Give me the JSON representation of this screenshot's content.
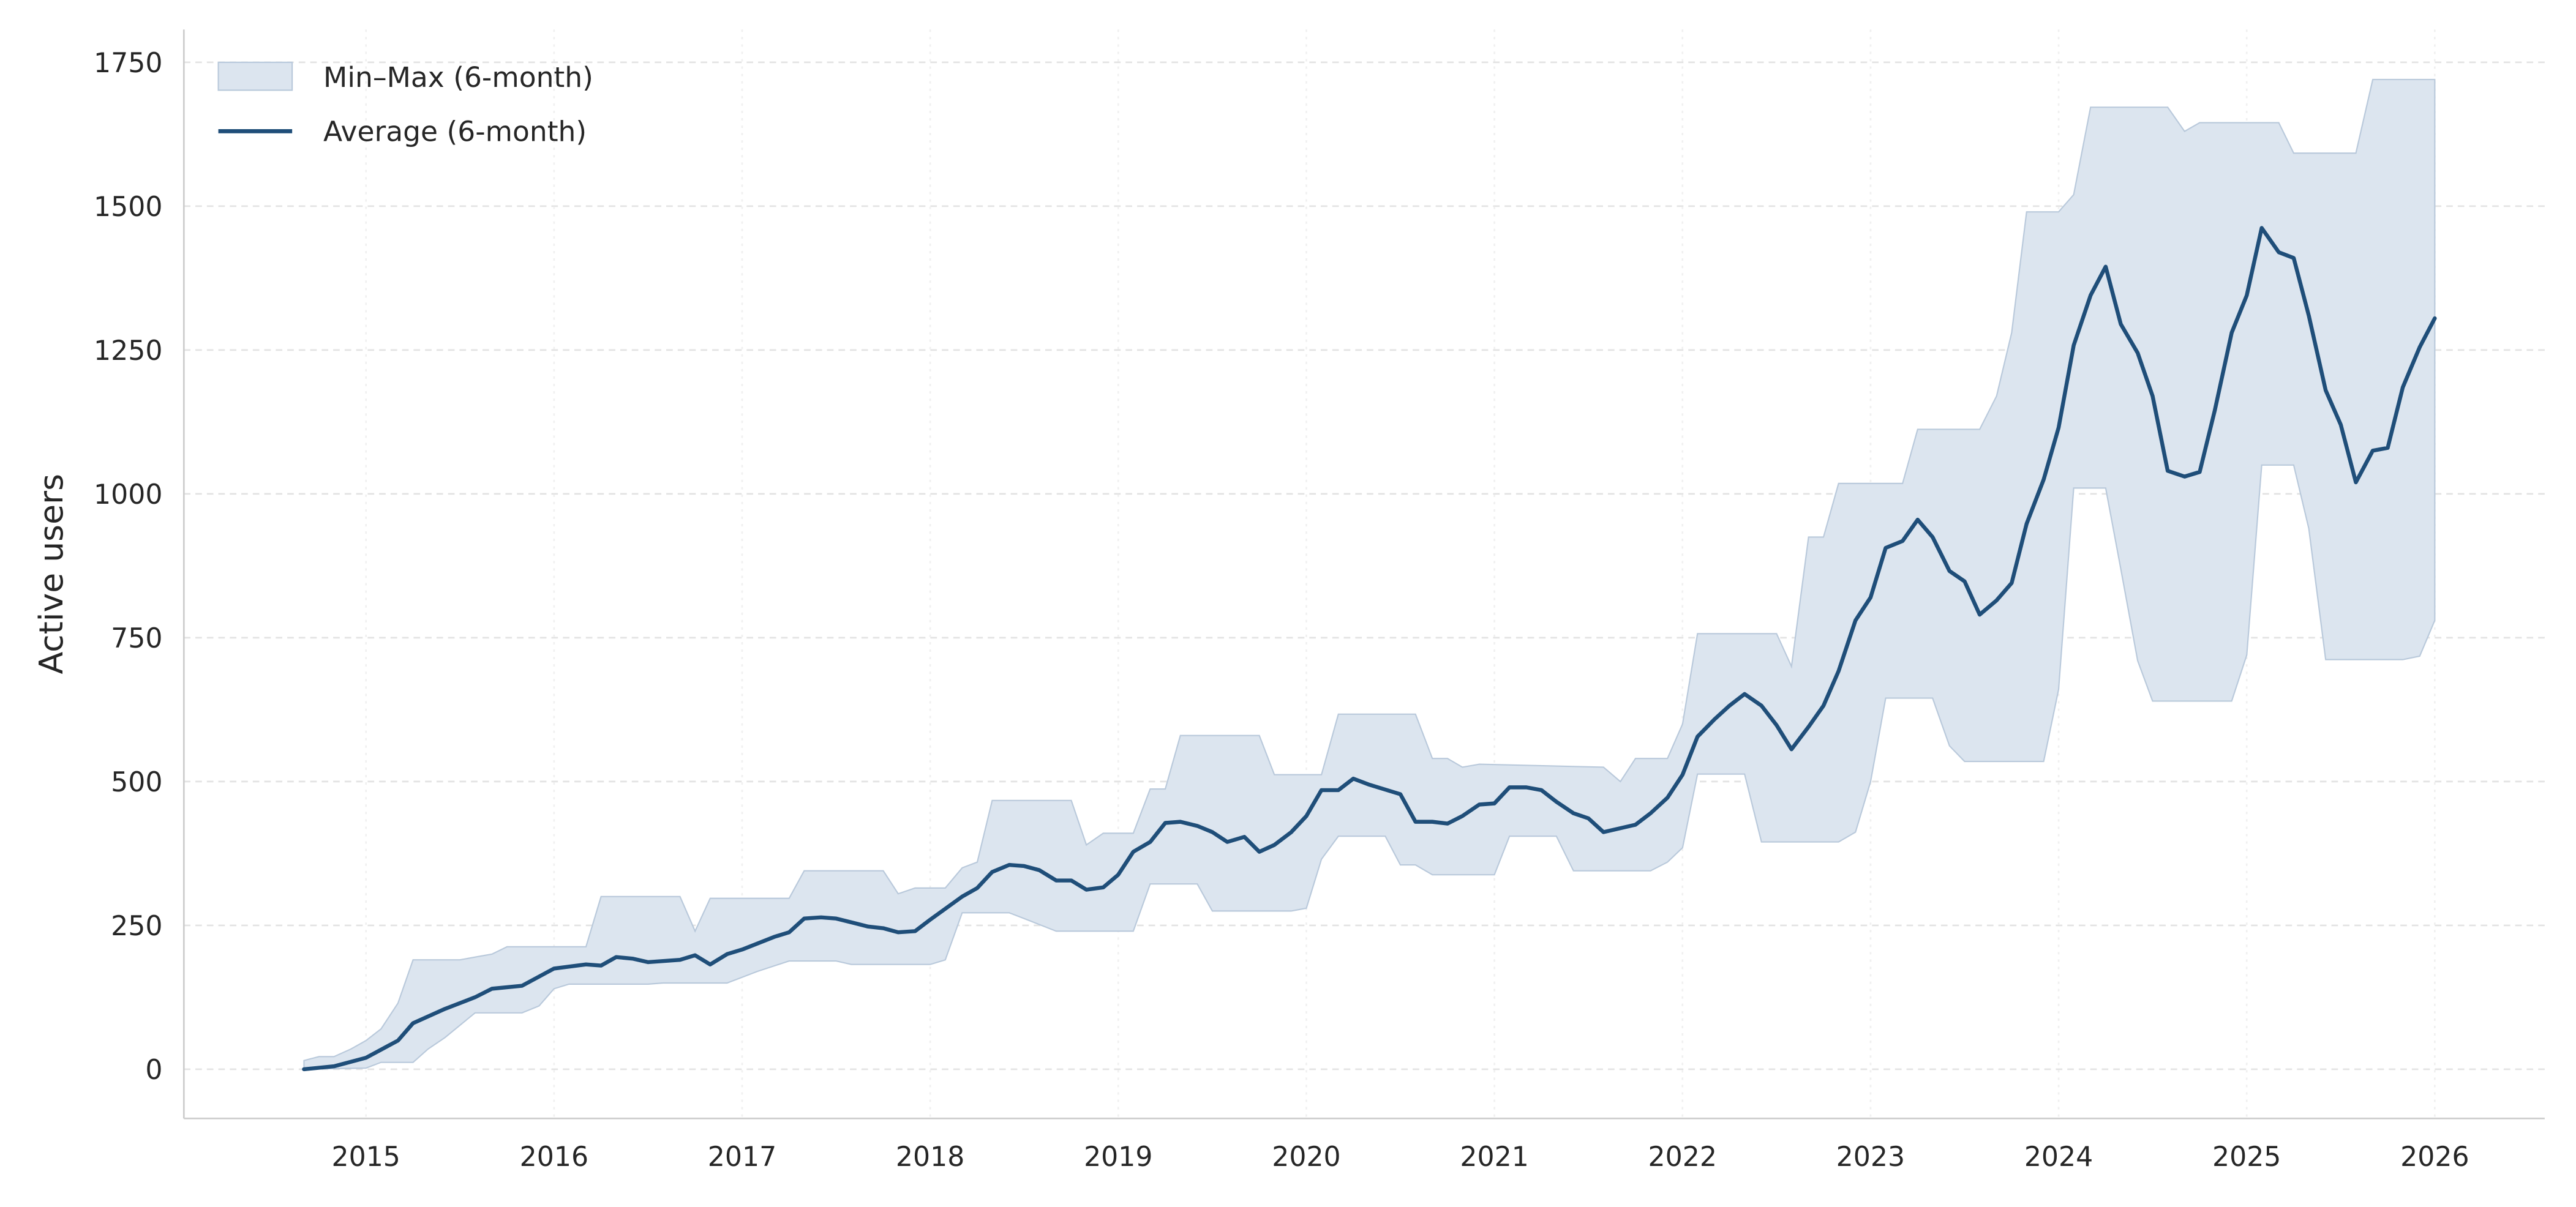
{
  "chart_data": {
    "type": "line",
    "title": "",
    "xlabel": "",
    "ylabel": "Active users",
    "xlim": [
      2014.1,
      2026.55
    ],
    "ylim": [
      -75,
      1810
    ],
    "yticks": [
      0,
      250,
      500,
      750,
      1000,
      1250,
      1500,
      1750
    ],
    "xticks": [
      2015,
      2016,
      2017,
      2018,
      2019,
      2020,
      2021,
      2022,
      2023,
      2024,
      2025,
      2026
    ],
    "grid": true,
    "legend_position": "top-left",
    "colors": {
      "line": "#1f4e79",
      "band": "#dce5ef",
      "band_edge": "#b9c9db"
    },
    "legend": [
      {
        "label": "Min–Max (6-month)",
        "kind": "band"
      },
      {
        "label": "Average (6-month)",
        "kind": "line"
      }
    ],
    "series": [
      {
        "name": "Average (6-month)",
        "x": [
          2014.67,
          2014.83,
          2015.0,
          2015.17,
          2015.25,
          2015.42,
          2015.58,
          2015.67,
          2015.83,
          2016.0,
          2016.17,
          2016.25,
          2016.33,
          2016.42,
          2016.5,
          2016.67,
          2016.75,
          2016.83,
          2016.92,
          2017.0,
          2017.17,
          2017.25,
          2017.33,
          2017.42,
          2017.5,
          2017.67,
          2017.75,
          2017.83,
          2017.92,
          2018.0,
          2018.17,
          2018.25,
          2018.33,
          2018.42,
          2018.5,
          2018.58,
          2018.67,
          2018.75,
          2018.83,
          2018.92,
          2019.0,
          2019.08,
          2019.17,
          2019.25,
          2019.33,
          2019.42,
          2019.5,
          2019.58,
          2019.67,
          2019.75,
          2019.83,
          2019.92,
          2020.0,
          2020.08,
          2020.17,
          2020.25,
          2020.33,
          2020.5,
          2020.58,
          2020.67,
          2020.75,
          2020.83,
          2020.92,
          2021.0,
          2021.08,
          2021.17,
          2021.25,
          2021.33,
          2021.42,
          2021.5,
          2021.58,
          2021.75,
          2021.83,
          2021.92,
          2022.0,
          2022.08,
          2022.17,
          2022.25,
          2022.33,
          2022.42,
          2022.5,
          2022.58,
          2022.67,
          2022.75,
          2022.83,
          2022.92,
          2023.0,
          2023.08,
          2023.17,
          2023.25,
          2023.33,
          2023.42,
          2023.5,
          2023.58,
          2023.67,
          2023.75,
          2023.83,
          2023.92,
          2024.0,
          2024.08,
          2024.17,
          2024.25,
          2024.33,
          2024.42,
          2024.5,
          2024.58,
          2024.67,
          2024.75,
          2024.83,
          2024.92,
          2025.0,
          2025.08,
          2025.17,
          2025.25,
          2025.33,
          2025.42,
          2025.5,
          2025.58,
          2025.67,
          2025.75,
          2025.83,
          2025.92,
          2026.0
        ],
        "values": [
          0,
          5,
          20,
          50,
          80,
          105,
          125,
          140,
          145,
          175,
          182,
          180,
          195,
          192,
          186,
          190,
          198,
          182,
          200,
          208,
          230,
          238,
          262,
          264,
          262,
          248,
          245,
          238,
          240,
          260,
          300,
          315,
          343,
          355,
          353,
          346,
          328,
          328,
          312,
          316,
          338,
          378,
          395,
          428,
          430,
          423,
          412,
          395,
          404,
          378,
          390,
          412,
          440,
          485,
          485,
          505,
          495,
          478,
          430,
          430,
          427,
          440,
          460,
          462,
          490,
          490,
          485,
          465,
          445,
          436,
          412,
          425,
          445,
          472,
          512,
          578,
          608,
          632,
          652,
          632,
          598,
          556,
          595,
          632,
          692,
          780,
          820,
          906,
          918,
          955,
          925,
          866,
          848,
          790,
          815,
          845,
          948,
          1025,
          1115,
          1258,
          1345,
          1395,
          1295,
          1245,
          1170,
          1040,
          1030,
          1038,
          1145,
          1280,
          1345,
          1462,
          1420,
          1410,
          1310,
          1180,
          1120,
          1020,
          1075,
          1080,
          1185,
          1255,
          1305
        ]
      },
      {
        "name": "Max (6-month)",
        "x": [
          2014.67,
          2014.75,
          2014.83,
          2014.92,
          2015.0,
          2015.08,
          2015.17,
          2015.25,
          2015.5,
          2015.58,
          2015.67,
          2015.75,
          2016.17,
          2016.25,
          2016.67,
          2016.75,
          2016.83,
          2017.25,
          2017.33,
          2017.75,
          2017.83,
          2017.92,
          2018.08,
          2018.17,
          2018.25,
          2018.33,
          2018.75,
          2018.83,
          2018.92,
          2019.08,
          2019.17,
          2019.25,
          2019.33,
          2019.75,
          2019.83,
          2020.08,
          2020.17,
          2020.58,
          2020.67,
          2020.75,
          2020.83,
          2020.92,
          2021.58,
          2021.67,
          2021.75,
          2021.92,
          2022.0,
          2022.08,
          2022.5,
          2022.58,
          2022.67,
          2022.75,
          2022.83,
          2023.17,
          2023.25,
          2023.58,
          2023.67,
          2023.75,
          2023.83,
          2024.0,
          2024.08,
          2024.17,
          2024.58,
          2024.67,
          2024.75,
          2025.17,
          2025.25,
          2025.58,
          2025.67,
          2026.0
        ],
        "values": [
          15,
          22,
          22,
          35,
          50,
          70,
          115,
          190,
          190,
          195,
          200,
          213,
          213,
          300,
          300,
          240,
          297,
          297,
          345,
          345,
          305,
          315,
          315,
          350,
          360,
          467,
          467,
          390,
          410,
          410,
          487,
          487,
          580,
          580,
          512,
          512,
          617,
          617,
          540,
          540,
          525,
          530,
          525,
          500,
          540,
          540,
          600,
          757,
          757,
          700,
          925,
          925,
          1018,
          1018,
          1112,
          1112,
          1170,
          1280,
          1490,
          1490,
          1520,
          1672,
          1672,
          1630,
          1645,
          1645,
          1592,
          1592,
          1720,
          1720
        ]
      },
      {
        "name": "Min (6-month)",
        "x": [
          2014.67,
          2015.0,
          2015.08,
          2015.25,
          2015.33,
          2015.42,
          2015.58,
          2015.83,
          2015.92,
          2016.0,
          2016.08,
          2016.5,
          2016.58,
          2016.92,
          2017.0,
          2017.08,
          2017.25,
          2017.5,
          2017.58,
          2018.0,
          2018.08,
          2018.17,
          2018.42,
          2018.5,
          2018.67,
          2019.08,
          2019.17,
          2019.42,
          2019.5,
          2019.92,
          2020.0,
          2020.08,
          2020.17,
          2020.42,
          2020.5,
          2020.58,
          2020.67,
          2021.0,
          2021.08,
          2021.33,
          2021.42,
          2021.83,
          2021.92,
          2022.0,
          2022.08,
          2022.33,
          2022.42,
          2022.83,
          2022.92,
          2023.0,
          2023.08,
          2023.33,
          2023.42,
          2023.5,
          2023.92,
          2024.0,
          2024.08,
          2024.25,
          2024.33,
          2024.42,
          2024.5,
          2024.92,
          2025.0,
          2025.08,
          2025.25,
          2025.33,
          2025.42,
          2025.83,
          2025.92,
          2026.0
        ],
        "values": [
          0,
          2,
          12,
          12,
          35,
          55,
          98,
          98,
          110,
          140,
          148,
          148,
          150,
          150,
          160,
          170,
          188,
          188,
          182,
          182,
          190,
          272,
          272,
          262,
          240,
          240,
          322,
          322,
          275,
          275,
          280,
          365,
          405,
          405,
          355,
          355,
          338,
          338,
          405,
          405,
          345,
          345,
          360,
          385,
          513,
          513,
          395,
          395,
          412,
          500,
          645,
          645,
          562,
          535,
          535,
          660,
          1010,
          1010,
          870,
          710,
          640,
          640,
          720,
          1050,
          1050,
          940,
          712,
          712,
          718,
          780
        ]
      }
    ]
  }
}
